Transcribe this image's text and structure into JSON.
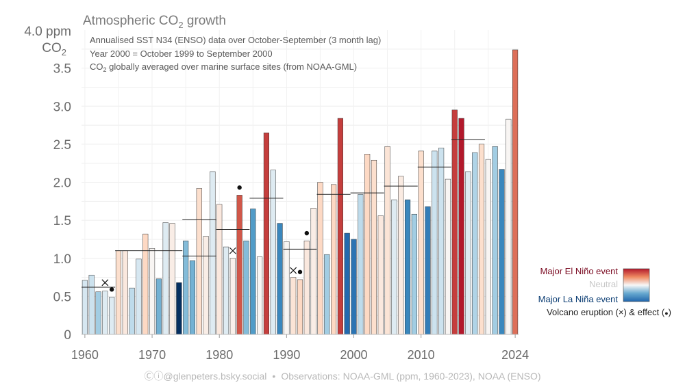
{
  "chart_data": {
    "type": "bar",
    "title": "Atmospheric CO",
    "title_sub": "2",
    "title_tail": " growth",
    "ylabel_top": "4.0 ppm",
    "ylabel_co": "CO",
    "ylabel_sub": "2",
    "notes": {
      "line1": "Annualised SST N34 (ENSO) data over October-September (3 month lag)",
      "line2": "Year 2000 = October 1999 to September 2000",
      "line3_pre": "CO",
      "line3_sub": "2",
      "line3_post": " globally averaged over marine surface sites (from NOAA-GML)"
    },
    "ylim": [
      0,
      4.0
    ],
    "yticks": [
      0,
      0.5,
      1.0,
      1.5,
      2.0,
      2.5,
      3.0,
      3.5
    ],
    "ytick_labels": [
      "0",
      "0.5",
      "1.0",
      "1.5",
      "2.0",
      "2.5",
      "3.0",
      "3.5"
    ],
    "xlim": [
      1959.5,
      2024.5
    ],
    "xticks": [
      1960,
      1970,
      1980,
      1990,
      2000,
      2010,
      2024
    ],
    "xtick_labels": [
      "1960",
      "1970",
      "1980",
      "1990",
      "2000",
      "2010",
      "2024"
    ],
    "x": [
      1960,
      1961,
      1962,
      1963,
      1964,
      1965,
      1966,
      1967,
      1968,
      1969,
      1970,
      1971,
      1972,
      1973,
      1974,
      1975,
      1976,
      1977,
      1978,
      1979,
      1980,
      1981,
      1982,
      1983,
      1984,
      1985,
      1986,
      1987,
      1988,
      1989,
      1990,
      1991,
      1992,
      1993,
      1994,
      1995,
      1996,
      1997,
      1998,
      1999,
      2000,
      2001,
      2002,
      2003,
      2004,
      2005,
      2006,
      2007,
      2008,
      2009,
      2010,
      2011,
      2012,
      2013,
      2014,
      2015,
      2016,
      2017,
      2018,
      2019,
      2020,
      2021,
      2022,
      2023,
      2024
    ],
    "values": [
      0.71,
      0.78,
      0.56,
      0.57,
      0.49,
      1.1,
      1.1,
      0.61,
      0.99,
      1.32,
      1.13,
      0.73,
      1.47,
      1.46,
      0.68,
      1.23,
      0.97,
      1.92,
      1.29,
      2.14,
      1.71,
      1.15,
      1.0,
      1.83,
      1.23,
      1.65,
      1.02,
      2.65,
      2.16,
      1.46,
      1.22,
      0.75,
      0.72,
      1.23,
      1.66,
      2.0,
      1.05,
      1.97,
      2.84,
      1.33,
      1.25,
      1.84,
      2.37,
      2.29,
      1.56,
      2.47,
      1.77,
      2.08,
      1.77,
      1.58,
      2.41,
      1.68,
      2.41,
      2.45,
      2.04,
      2.95,
      2.84,
      2.14,
      2.39,
      2.5,
      2.3,
      2.47,
      2.17,
      2.83,
      3.74
    ],
    "enso": [
      -0.4,
      -0.5,
      -0.8,
      -0.3,
      -0.3,
      0.5,
      0.3,
      -0.6,
      -0.4,
      0.6,
      0.05,
      -1.1,
      -0.3,
      0.2,
      -2.3,
      -1.0,
      -1.1,
      0.5,
      0.2,
      -0.3,
      0.3,
      -0.3,
      0.15,
      1.8,
      -1.0,
      -1.3,
      0.05,
      2.0,
      -0.3,
      -1.5,
      0.05,
      0.4,
      0.6,
      0.3,
      0.2,
      0.6,
      -0.8,
      0.6,
      2.0,
      -1.8,
      -1.7,
      -0.6,
      0.6,
      0.5,
      0.3,
      0.4,
      -0.3,
      0.25,
      -1.5,
      -0.8,
      0.5,
      -1.6,
      -0.5,
      -0.5,
      0.05,
      2.0,
      2.3,
      -0.3,
      -0.7,
      0.5,
      0.05,
      -0.8,
      -1.5,
      0.05,
      1.6
    ],
    "decade_means": [
      {
        "start": 1960,
        "end": 1964,
        "value": 0.62
      },
      {
        "start": 1965,
        "end": 1974,
        "value": 1.1
      },
      {
        "start": 1975,
        "end": 1979,
        "value": 1.03
      },
      {
        "start": 1975,
        "end": 1979,
        "value": 1.51
      },
      {
        "start": 1980,
        "end": 1984,
        "value": 1.38
      },
      {
        "start": 1985,
        "end": 1989,
        "value": 1.79
      },
      {
        "start": 1990,
        "end": 1994,
        "value": 1.12
      },
      {
        "start": 1995,
        "end": 1999,
        "value": 1.84
      },
      {
        "start": 2000,
        "end": 2004,
        "value": 1.86
      },
      {
        "start": 2005,
        "end": 2009,
        "value": 1.95
      },
      {
        "start": 2010,
        "end": 2014,
        "value": 2.2
      },
      {
        "start": 2015,
        "end": 2019,
        "value": 2.56
      }
    ],
    "volcano_eruptions": [
      {
        "year": 1963,
        "value": 0.68
      },
      {
        "year": 1982,
        "value": 1.1
      },
      {
        "year": 1991,
        "value": 0.84
      }
    ],
    "volcano_effects": [
      {
        "year": 1964,
        "value": 0.59
      },
      {
        "year": 1983,
        "value": 1.93
      },
      {
        "year": 1992,
        "value": 0.82
      },
      {
        "year": 1993,
        "value": 1.33
      }
    ],
    "legend": {
      "el_nino": "Major El Niño event",
      "neutral": "Neutral",
      "la_nina": "Major La Niña event",
      "volcano_pre": "Volcano eruption (",
      "volcano_x": "×",
      "volcano_mid": ") & effect (",
      "volcano_dot": "●",
      "volcano_post": ")",
      "position": "bottom-right"
    },
    "colors": {
      "el_nino": "#b2182b",
      "neutral": "#f7f7f7",
      "la_nina": "#2166ac",
      "el_nino_text": "#7a0a21",
      "neutral_text": "#c8c8c8",
      "la_nina_text": "#0b3d73"
    },
    "grid": true
  },
  "footer": {
    "cc_icons": "Ⓒⓘ",
    "handle": "@glenpeters.bsky.social",
    "bullet": "•",
    "source": "Observations: NOAA-GML (ppm, 1960-2023), NOAA (ENSO)"
  }
}
